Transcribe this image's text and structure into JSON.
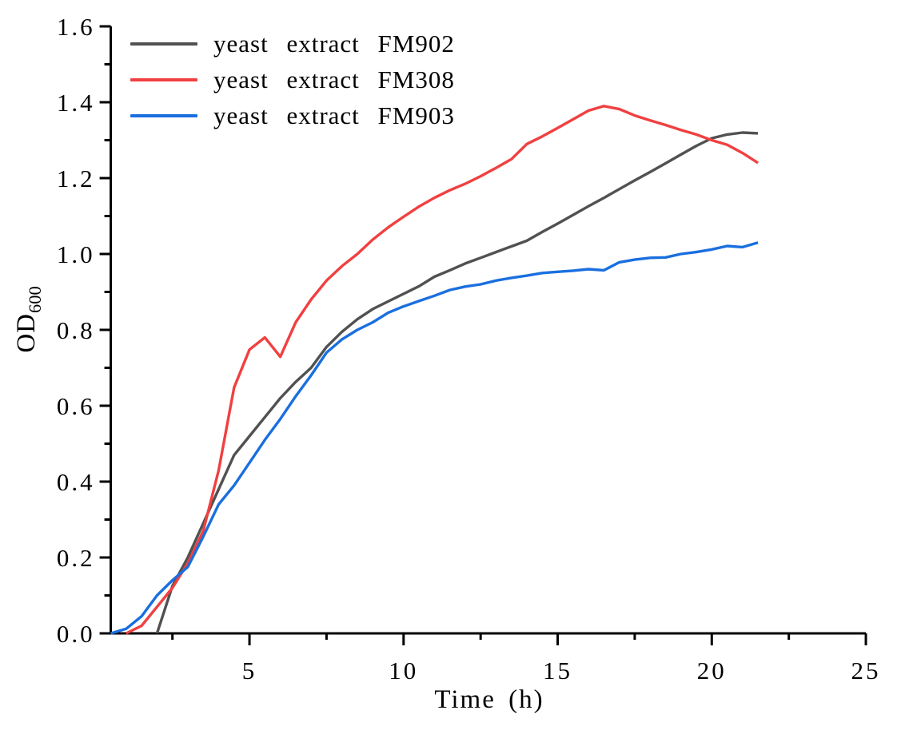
{
  "chart_data": {
    "type": "line",
    "title": "",
    "xlabel": "Time (h)",
    "ylabel": "OD",
    "ylabel_subscript": "600",
    "xlim": [
      0.5,
      25
    ],
    "ylim": [
      0.0,
      1.6
    ],
    "x_major_ticks": [
      5,
      10,
      15,
      20,
      25
    ],
    "x_minor_ticks": [
      2.5,
      7.5,
      12.5,
      17.5,
      22.5
    ],
    "y_major_ticks": [
      0.0,
      0.2,
      0.4,
      0.6,
      0.8,
      1.0,
      1.2,
      1.4,
      1.6
    ],
    "y_minor_ticks": [
      0.1,
      0.3,
      0.5,
      0.7,
      0.9,
      1.1,
      1.3,
      1.5
    ],
    "grid": false,
    "legend_position": "top-left",
    "axis_color": "#000000",
    "background_color": "#ffffff",
    "series": [
      {
        "name": "yeast extract FM902",
        "color": "#515151",
        "x": [
          2,
          2.5,
          3,
          3.5,
          4,
          4.5,
          5,
          5.5,
          6,
          6.5,
          7,
          7.5,
          8,
          8.5,
          9,
          9.5,
          10,
          10.5,
          11,
          11.5,
          12,
          12.5,
          13,
          13.5,
          14,
          14.5,
          15,
          15.5,
          16,
          16.5,
          17,
          17.5,
          18,
          18.5,
          19,
          19.5,
          20,
          20.5,
          21,
          21.5
        ],
        "y": [
          0,
          0.125,
          0.2,
          0.29,
          0.38,
          0.47,
          0.52,
          0.57,
          0.62,
          0.663,
          0.7,
          0.755,
          0.795,
          0.828,
          0.855,
          0.875,
          0.895,
          0.915,
          0.94,
          0.957,
          0.975,
          0.99,
          1.005,
          1.02,
          1.035,
          1.058,
          1.08,
          1.103,
          1.126,
          1.148,
          1.171,
          1.194,
          1.216,
          1.239,
          1.262,
          1.285,
          1.305,
          1.315,
          1.32,
          1.318
        ]
      },
      {
        "name": "yeast extract FM308",
        "color": "#F14040",
        "x": [
          1,
          1.5,
          2,
          2.5,
          3,
          3.5,
          4,
          4.5,
          5,
          5.5,
          6,
          6.5,
          7,
          7.5,
          8,
          8.5,
          9,
          9.5,
          10,
          10.5,
          11,
          11.5,
          12,
          12.5,
          13,
          13.5,
          14,
          14.5,
          15,
          15.5,
          16,
          16.5,
          17,
          17.5,
          18,
          18.5,
          19,
          19.5,
          20,
          20.5,
          21,
          21.5
        ],
        "y": [
          0,
          0.02,
          0.07,
          0.12,
          0.185,
          0.27,
          0.43,
          0.648,
          0.748,
          0.78,
          0.729,
          0.82,
          0.88,
          0.93,
          0.968,
          1.0,
          1.038,
          1.07,
          1.098,
          1.125,
          1.148,
          1.168,
          1.185,
          1.205,
          1.227,
          1.25,
          1.29,
          1.31,
          1.332,
          1.355,
          1.378,
          1.39,
          1.382,
          1.365,
          1.352,
          1.34,
          1.327,
          1.315,
          1.3,
          1.288,
          1.266,
          1.24
        ]
      },
      {
        "name": "yeast extract FM903",
        "color": "#1A6FDF",
        "x": [
          0.5,
          1,
          1.5,
          2,
          2.5,
          3,
          3.5,
          4,
          4.5,
          5,
          5.5,
          6,
          6.5,
          7,
          7.5,
          8,
          8.5,
          9,
          9.5,
          10,
          10.5,
          11,
          11.5,
          12,
          12.5,
          13,
          13.5,
          14,
          14.5,
          15,
          15.5,
          16,
          16.5,
          17,
          17.5,
          18,
          18.5,
          19,
          19.5,
          20,
          20.5,
          21,
          21.5
        ],
        "y": [
          0,
          0.012,
          0.045,
          0.1,
          0.14,
          0.175,
          0.255,
          0.34,
          0.39,
          0.45,
          0.51,
          0.565,
          0.625,
          0.68,
          0.74,
          0.775,
          0.8,
          0.82,
          0.845,
          0.862,
          0.876,
          0.89,
          0.905,
          0.914,
          0.92,
          0.93,
          0.937,
          0.943,
          0.95,
          0.953,
          0.956,
          0.96,
          0.957,
          0.978,
          0.985,
          0.99,
          0.991,
          1.0,
          1.005,
          1.012,
          1.021,
          1.018,
          1.03
        ]
      }
    ]
  }
}
